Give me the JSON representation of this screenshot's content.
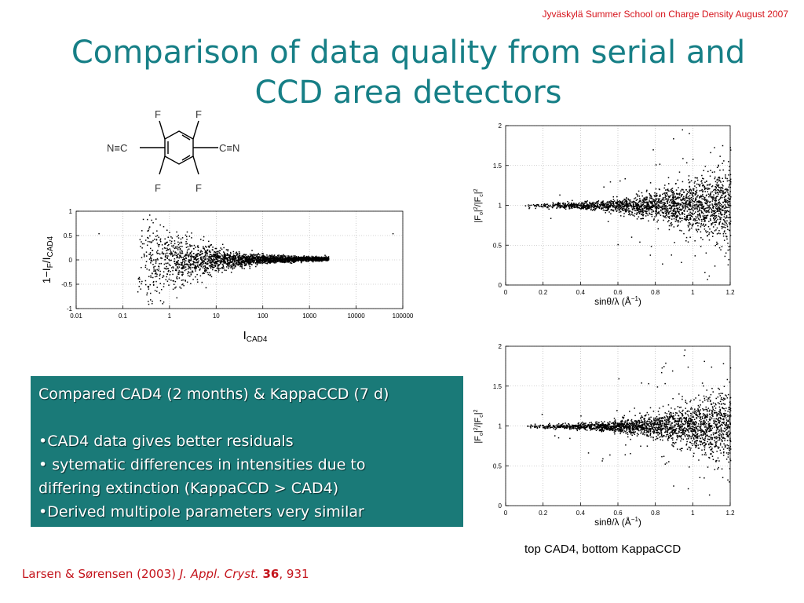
{
  "header": {
    "event": "Jyväskylä Summer School  on Charge Density August 2007"
  },
  "slide": {
    "title_line1": "Comparison of data quality from serial and",
    "title_line2": "CCD area detectors"
  },
  "molecule": {
    "atom_F": "F",
    "group_left": "N≡C",
    "group_right": "C≡N"
  },
  "textbox": {
    "line1": "Compared CAD4 (2 months) & KappaCCD (7 d)",
    "bullet1": "•CAD4 data gives better residuals",
    "bullet2a": "• sytematic differences in intensities due to",
    "bullet2b": "differing extinction (KappaCCD > CAD4)",
    "bullet3": "•Derived multipole parameters very similar"
  },
  "caption": "top CAD4, bottom KappaCCD",
  "citation": {
    "authors": "Larsen & Sørensen (2003) ",
    "journal": "J. Appl. Cryst.",
    "volume": "36",
    "page": ", 931"
  },
  "chart_data": [
    {
      "type": "scatter",
      "id": "left",
      "xlabel": "I",
      "xlabel_sub": "CAD4",
      "ylabel_parts": [
        "1−I",
        "F",
        "/I",
        "CAD4"
      ],
      "x_scale": "log",
      "xlim": [
        0.01,
        100000
      ],
      "ylim": [
        -1,
        1
      ],
      "x_ticks": [
        0.01,
        0.1,
        1,
        10,
        100,
        1000,
        10000,
        100000
      ],
      "x_tick_labels": [
        "0.01",
        "0.1",
        "1",
        "10",
        "100",
        "1000",
        "10000",
        "100000"
      ],
      "y_ticks": [
        -1,
        -0.5,
        0,
        0.5,
        1
      ],
      "y_tick_labels": [
        "-1",
        "-0.5",
        "0",
        "0.5",
        "1"
      ],
      "grid": true,
      "n_points": 2600
    },
    {
      "type": "scatter",
      "id": "top-right",
      "series_note": "CAD4",
      "xlabel": "sinθ/λ (Å",
      "xlabel_sup": "−1",
      "ylabel": "|F",
      "ylabel_full": "|Fo|²/|Fc|²",
      "xlim": [
        0,
        1.2
      ],
      "ylim": [
        0,
        2
      ],
      "x_ticks": [
        0,
        0.2,
        0.4,
        0.6,
        0.8,
        1,
        1.2
      ],
      "x_tick_labels": [
        "0",
        "0.2",
        "0.4",
        "0.6",
        "0.8",
        "1",
        "1.2"
      ],
      "y_ticks": [
        0,
        0.5,
        1,
        1.5,
        2
      ],
      "y_tick_labels": [
        "0",
        "0.5",
        "1",
        "1.5",
        "2"
      ],
      "grid": true,
      "n_points": 2200
    },
    {
      "type": "scatter",
      "id": "bottom-right",
      "series_note": "KappaCCD",
      "xlabel": "sinθ/λ (Å",
      "xlabel_sup": "−1",
      "ylabel": "|F",
      "ylabel_full": "|Fo|²/|Fc|²",
      "xlim": [
        0,
        1.2
      ],
      "ylim": [
        0,
        2
      ],
      "x_ticks": [
        0,
        0.2,
        0.4,
        0.6,
        0.8,
        1,
        1.2
      ],
      "x_tick_labels": [
        "0",
        "0.2",
        "0.4",
        "0.6",
        "0.8",
        "1",
        "1.2"
      ],
      "y_ticks": [
        0,
        0.5,
        1,
        1.5,
        2
      ],
      "y_tick_labels": [
        "0",
        "0.5",
        "1",
        "1.5",
        "2"
      ],
      "grid": true,
      "n_points": 2200
    }
  ]
}
